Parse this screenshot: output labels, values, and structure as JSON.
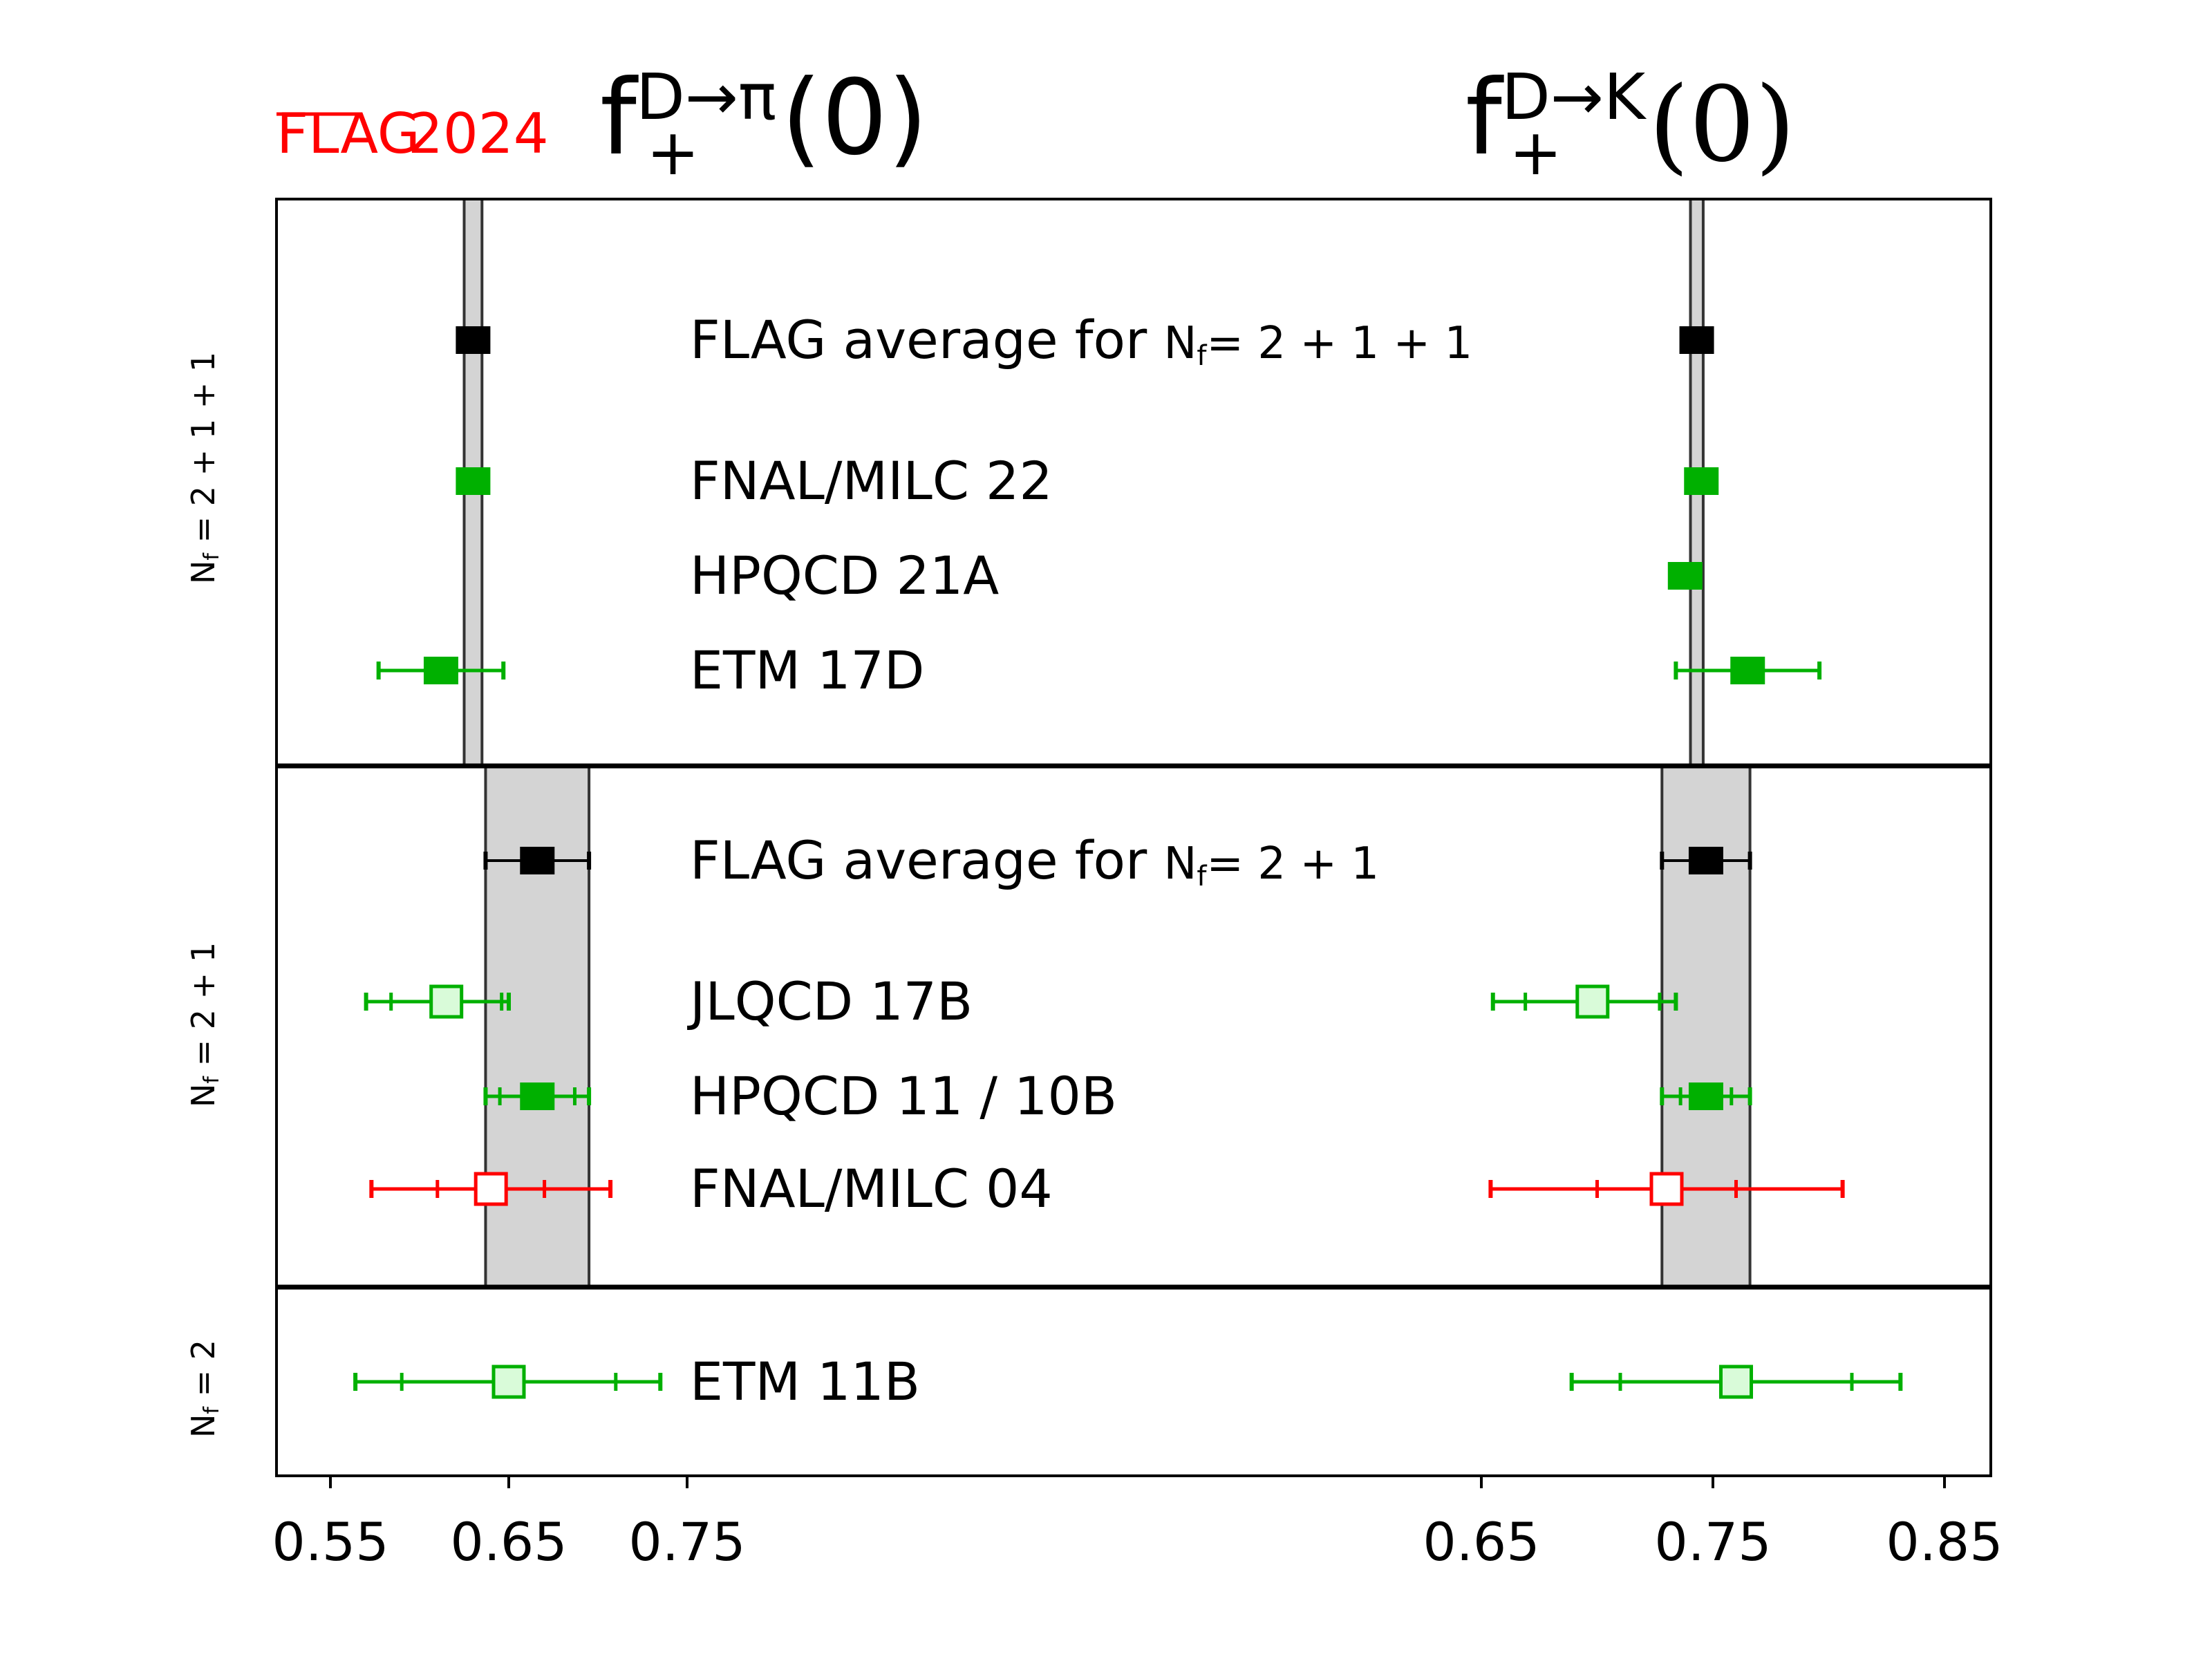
{
  "brand": {
    "flag": "FLAG",
    "year": "2024",
    "color": "#ff0000"
  },
  "chart_data": {
    "type": "scatter",
    "subtype": "forest-plot-with-error-bars",
    "panels": [
      {
        "id": "dpi",
        "title_main": "f",
        "title_sup": "D→π",
        "title_sub": "+",
        "title_arg": "(0)",
        "xlim": [
          0.535,
          0.8
        ],
        "ticks": [
          0.55,
          0.65,
          0.75
        ],
        "tick_labels": [
          "0.55",
          "0.65",
          "0.75"
        ]
      },
      {
        "id": "dk",
        "title_main": "f",
        "title_sup": "D→K",
        "title_sub": "+",
        "title_arg": "(0)",
        "xlim": [
          0.6,
          0.87
        ],
        "ticks": [
          0.65,
          0.75,
          0.85
        ],
        "tick_labels": [
          "0.65",
          "0.75",
          "0.85"
        ]
      }
    ],
    "groups": [
      {
        "label": "Nf = 2+1+1",
        "label_main": "N",
        "label_sub": "f",
        "label_rest": " = 2 + 1 + 1",
        "bands": {
          "dpi": [
            0.625,
            0.635
          ],
          "dk": [
            0.7403,
            0.7458
          ]
        },
        "rows": [
          {
            "name": "FLAG average for Nf = 2+1+1",
            "text": "FLAG average for ",
            "nf": "= 2 + 1 + 1",
            "style": "average",
            "dpi": {
              "value": 0.63,
              "stat": null,
              "total": null
            },
            "dk": {
              "value": 0.743,
              "stat": null,
              "total": null
            }
          },
          {
            "name": "FNAL/MILC 22",
            "text": "FNAL/MILC 22",
            "style": "green-filled",
            "dpi": {
              "value": 0.63,
              "stat": null,
              "total": null
            },
            "dk": {
              "value": 0.745,
              "stat": null,
              "total": null
            }
          },
          {
            "name": "HPQCD 21A",
            "text": "HPQCD 21A",
            "style": "green-filled",
            "dpi": null,
            "dk": {
              "value": 0.738,
              "stat": null,
              "total": null
            }
          },
          {
            "name": "ETM 17D",
            "text": "ETM 17D",
            "style": "green-filled",
            "dpi": {
              "value": 0.612,
              "stat": null,
              "total": [
                0.577,
                0.647
              ]
            },
            "dk": {
              "value": 0.765,
              "stat": null,
              "total": [
                0.734,
                0.796
              ]
            }
          }
        ]
      },
      {
        "label": "Nf = 2+1",
        "label_main": "N",
        "label_sub": "f",
        "label_rest": " = 2 + 1",
        "bands": {
          "dpi": [
            0.637,
            0.695
          ],
          "dk": [
            0.728,
            0.766
          ]
        },
        "rows": [
          {
            "name": "FLAG average for Nf = 2+1",
            "text": "FLAG average for ",
            "nf": "= 2 + 1",
            "style": "average",
            "dpi": {
              "value": 0.666,
              "stat": null,
              "total": [
                0.637,
                0.695
              ]
            },
            "dk": {
              "value": 0.747,
              "stat": null,
              "total": [
                0.728,
                0.766
              ]
            }
          },
          {
            "name": "JLQCD 17B",
            "text": "JLQCD 17B",
            "style": "green-open",
            "dpi": {
              "value": 0.615,
              "stat": [
                0.584,
                0.646
              ],
              "total": [
                0.57,
                0.65
              ]
            },
            "dk": {
              "value": 0.698,
              "stat": [
                0.669,
                0.727
              ],
              "total": [
                0.655,
                0.734
              ]
            }
          },
          {
            "name": "HPQCD 11 / 10B",
            "text": "HPQCD 11 / 10B",
            "style": "green-filled",
            "dpi": {
              "value": 0.666,
              "stat": [
                0.645,
                0.687
              ],
              "total": [
                0.637,
                0.695
              ]
            },
            "dk": {
              "value": 0.747,
              "stat": [
                0.736,
                0.758
              ],
              "total": [
                0.728,
                0.766
              ]
            }
          },
          {
            "name": "FNAL/MILC 04",
            "text": "FNAL/MILC 04",
            "style": "red-open",
            "dpi": {
              "value": 0.64,
              "stat": [
                0.61,
                0.67
              ],
              "total": [
                0.573,
                0.707
              ]
            },
            "dk": {
              "value": 0.73,
              "stat": [
                0.7,
                0.76
              ],
              "total": [
                0.654,
                0.806
              ]
            }
          }
        ]
      },
      {
        "label": "Nf = 2",
        "label_main": "N",
        "label_sub": "f",
        "label_rest": " = 2",
        "bands": null,
        "rows": [
          {
            "name": "ETM 11B",
            "text": "ETM 11B",
            "style": "green-open",
            "dpi": {
              "value": 0.65,
              "stat": [
                0.59,
                0.71
              ],
              "total": [
                0.564,
                0.735
              ]
            },
            "dk": {
              "value": 0.76,
              "stat": [
                0.71,
                0.81
              ],
              "total": [
                0.689,
                0.831
              ]
            }
          }
        ]
      }
    ],
    "colors": {
      "average": "#000000",
      "green": "#00b000",
      "green_fill_light": "#d9fbd9",
      "red": "#ff0000",
      "band": "#d4d4d4",
      "band_edge": "#333333"
    },
    "grid": false,
    "legend": "none"
  }
}
